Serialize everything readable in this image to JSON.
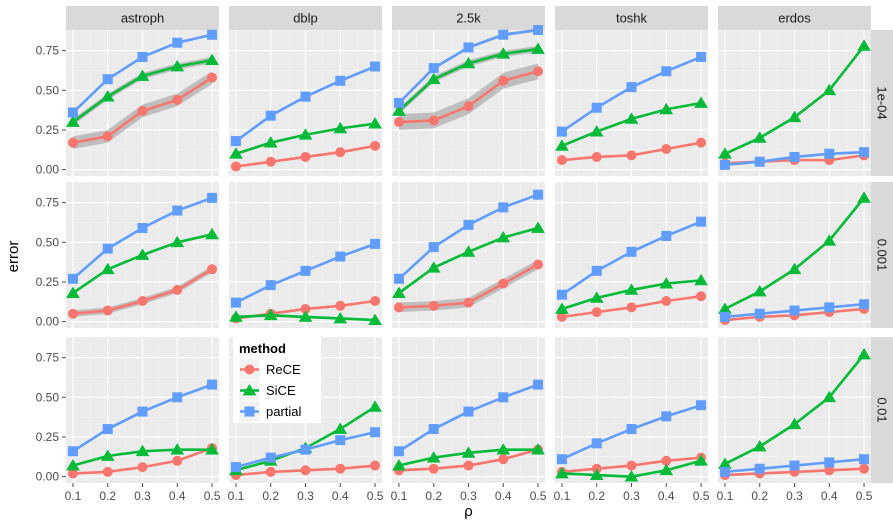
{
  "chart_data": {
    "type": "line",
    "xlabel": "ρ",
    "ylabel": "error",
    "x": [
      0.1,
      0.2,
      0.3,
      0.4,
      0.5
    ],
    "x_tick_labels": [
      "0.1",
      "0.2",
      "0.3",
      "0.4",
      "0.5"
    ],
    "y_tick_labels": [
      "0.00",
      "0.25",
      "0.50",
      "0.75"
    ],
    "y_ticks": [
      0,
      0.25,
      0.5,
      0.75
    ],
    "ylim": [
      -0.04,
      0.88
    ],
    "xlim": [
      0.08,
      0.52
    ],
    "columns": [
      "astroph",
      "dblp",
      "2.5k",
      "toshk",
      "erdos"
    ],
    "rows": [
      "1e-04",
      "0.001",
      "0.01"
    ],
    "legend": {
      "title": "method",
      "position": "inside bottom-row second panel",
      "entries": [
        "ReCE",
        "SiCE",
        "partial"
      ]
    },
    "colors": {
      "ReCE": "#F8766D",
      "SiCE": "#00BA38",
      "partial": "#619CFF",
      "panel": "#EBEBEB",
      "strip": "#D9D9D9",
      "ribbon": "#999999"
    },
    "markers": {
      "ReCE": "circle",
      "SiCE": "triangle",
      "partial": "square"
    },
    "panels": [
      {
        "row": "1e-04",
        "column": "astroph",
        "series": [
          {
            "name": "ReCE",
            "values": [
              0.17,
              0.21,
              0.37,
              0.44,
              0.58
            ],
            "band": 0.04
          },
          {
            "name": "SiCE",
            "values": [
              0.3,
              0.46,
              0.59,
              0.65,
              0.69
            ],
            "band": 0.02
          },
          {
            "name": "partial",
            "values": [
              0.36,
              0.57,
              0.71,
              0.8,
              0.85
            ],
            "band": 0
          }
        ]
      },
      {
        "row": "1e-04",
        "column": "dblp",
        "series": [
          {
            "name": "ReCE",
            "values": [
              0.02,
              0.05,
              0.08,
              0.11,
              0.15
            ],
            "band": 0
          },
          {
            "name": "SiCE",
            "values": [
              0.1,
              0.17,
              0.22,
              0.26,
              0.29
            ],
            "band": 0
          },
          {
            "name": "partial",
            "values": [
              0.18,
              0.34,
              0.46,
              0.56,
              0.65
            ],
            "band": 0
          }
        ]
      },
      {
        "row": "1e-04",
        "column": "2.5k",
        "series": [
          {
            "name": "ReCE",
            "values": [
              0.3,
              0.31,
              0.4,
              0.56,
              0.62
            ],
            "band": 0.05
          },
          {
            "name": "SiCE",
            "values": [
              0.37,
              0.57,
              0.67,
              0.73,
              0.76
            ],
            "band": 0.02
          },
          {
            "name": "partial",
            "values": [
              0.42,
              0.64,
              0.77,
              0.85,
              0.88
            ],
            "band": 0.01
          }
        ]
      },
      {
        "row": "1e-04",
        "column": "toshk",
        "series": [
          {
            "name": "ReCE",
            "values": [
              0.06,
              0.08,
              0.09,
              0.13,
              0.17
            ],
            "band": 0
          },
          {
            "name": "SiCE",
            "values": [
              0.15,
              0.24,
              0.32,
              0.38,
              0.42
            ],
            "band": 0
          },
          {
            "name": "partial",
            "values": [
              0.24,
              0.39,
              0.52,
              0.62,
              0.71
            ],
            "band": 0
          }
        ]
      },
      {
        "row": "1e-04",
        "column": "erdos",
        "series": [
          {
            "name": "ReCE",
            "values": [
              0.04,
              0.05,
              0.06,
              0.06,
              0.09
            ],
            "band": 0
          },
          {
            "name": "SiCE",
            "values": [
              0.1,
              0.2,
              0.33,
              0.5,
              0.78
            ],
            "band": 0
          },
          {
            "name": "partial",
            "values": [
              0.03,
              0.05,
              0.08,
              0.1,
              0.11
            ],
            "band": 0
          }
        ]
      },
      {
        "row": "0.001",
        "column": "astroph",
        "series": [
          {
            "name": "ReCE",
            "values": [
              0.05,
              0.07,
              0.13,
              0.2,
              0.33
            ],
            "band": 0.02
          },
          {
            "name": "SiCE",
            "values": [
              0.18,
              0.33,
              0.42,
              0.5,
              0.55
            ],
            "band": 0
          },
          {
            "name": "partial",
            "values": [
              0.27,
              0.46,
              0.59,
              0.7,
              0.78
            ],
            "band": 0
          }
        ]
      },
      {
        "row": "0.001",
        "column": "dblp",
        "series": [
          {
            "name": "ReCE",
            "values": [
              0.02,
              0.05,
              0.08,
              0.1,
              0.13
            ],
            "band": 0
          },
          {
            "name": "SiCE",
            "values": [
              0.03,
              0.04,
              0.03,
              0.02,
              0.01
            ],
            "band": 0
          },
          {
            "name": "partial",
            "values": [
              0.12,
              0.23,
              0.32,
              0.41,
              0.49
            ],
            "band": 0
          }
        ]
      },
      {
        "row": "0.001",
        "column": "2.5k",
        "series": [
          {
            "name": "ReCE",
            "values": [
              0.09,
              0.1,
              0.12,
              0.24,
              0.36
            ],
            "band": 0.03
          },
          {
            "name": "SiCE",
            "values": [
              0.18,
              0.34,
              0.44,
              0.53,
              0.59
            ],
            "band": 0
          },
          {
            "name": "partial",
            "values": [
              0.27,
              0.47,
              0.61,
              0.72,
              0.8
            ],
            "band": 0
          }
        ]
      },
      {
        "row": "0.001",
        "column": "toshk",
        "series": [
          {
            "name": "ReCE",
            "values": [
              0.03,
              0.06,
              0.09,
              0.13,
              0.16
            ],
            "band": 0
          },
          {
            "name": "SiCE",
            "values": [
              0.08,
              0.15,
              0.2,
              0.24,
              0.26
            ],
            "band": 0
          },
          {
            "name": "partial",
            "values": [
              0.17,
              0.32,
              0.44,
              0.54,
              0.63
            ],
            "band": 0
          }
        ]
      },
      {
        "row": "0.001",
        "column": "erdos",
        "series": [
          {
            "name": "ReCE",
            "values": [
              0.01,
              0.03,
              0.04,
              0.06,
              0.08
            ],
            "band": 0
          },
          {
            "name": "SiCE",
            "values": [
              0.08,
              0.19,
              0.33,
              0.51,
              0.78
            ],
            "band": 0
          },
          {
            "name": "partial",
            "values": [
              0.03,
              0.05,
              0.07,
              0.09,
              0.11
            ],
            "band": 0
          }
        ]
      },
      {
        "row": "0.01",
        "column": "astroph",
        "series": [
          {
            "name": "ReCE",
            "values": [
              0.02,
              0.03,
              0.06,
              0.1,
              0.18
            ],
            "band": 0
          },
          {
            "name": "SiCE",
            "values": [
              0.07,
              0.13,
              0.16,
              0.17,
              0.17
            ],
            "band": 0
          },
          {
            "name": "partial",
            "values": [
              0.16,
              0.3,
              0.41,
              0.5,
              0.58
            ],
            "band": 0
          }
        ]
      },
      {
        "row": "0.01",
        "column": "dblp",
        "series": [
          {
            "name": "ReCE",
            "values": [
              0.01,
              0.03,
              0.04,
              0.05,
              0.07
            ],
            "band": 0
          },
          {
            "name": "SiCE",
            "values": [
              0.04,
              0.1,
              0.18,
              0.3,
              0.44
            ],
            "band": 0
          },
          {
            "name": "partial",
            "values": [
              0.06,
              0.12,
              0.17,
              0.23,
              0.28
            ],
            "band": 0
          }
        ]
      },
      {
        "row": "0.01",
        "column": "2.5k",
        "series": [
          {
            "name": "ReCE",
            "values": [
              0.04,
              0.05,
              0.07,
              0.11,
              0.17
            ],
            "band": 0
          },
          {
            "name": "SiCE",
            "values": [
              0.07,
              0.12,
              0.15,
              0.17,
              0.17
            ],
            "band": 0
          },
          {
            "name": "partial",
            "values": [
              0.16,
              0.3,
              0.41,
              0.5,
              0.58
            ],
            "band": 0
          }
        ]
      },
      {
        "row": "0.01",
        "column": "toshk",
        "series": [
          {
            "name": "ReCE",
            "values": [
              0.03,
              0.05,
              0.07,
              0.1,
              0.12
            ],
            "band": 0
          },
          {
            "name": "SiCE",
            "values": [
              0.02,
              0.01,
              0.0,
              0.04,
              0.1
            ],
            "band": 0
          },
          {
            "name": "partial",
            "values": [
              0.11,
              0.21,
              0.3,
              0.38,
              0.45
            ],
            "band": 0
          }
        ]
      },
      {
        "row": "0.01",
        "column": "erdos",
        "series": [
          {
            "name": "ReCE",
            "values": [
              0.01,
              0.02,
              0.03,
              0.04,
              0.05
            ],
            "band": 0
          },
          {
            "name": "SiCE",
            "values": [
              0.08,
              0.19,
              0.33,
              0.5,
              0.77
            ],
            "band": 0
          },
          {
            "name": "partial",
            "values": [
              0.03,
              0.05,
              0.07,
              0.09,
              0.11
            ],
            "band": 0
          }
        ]
      }
    ]
  }
}
